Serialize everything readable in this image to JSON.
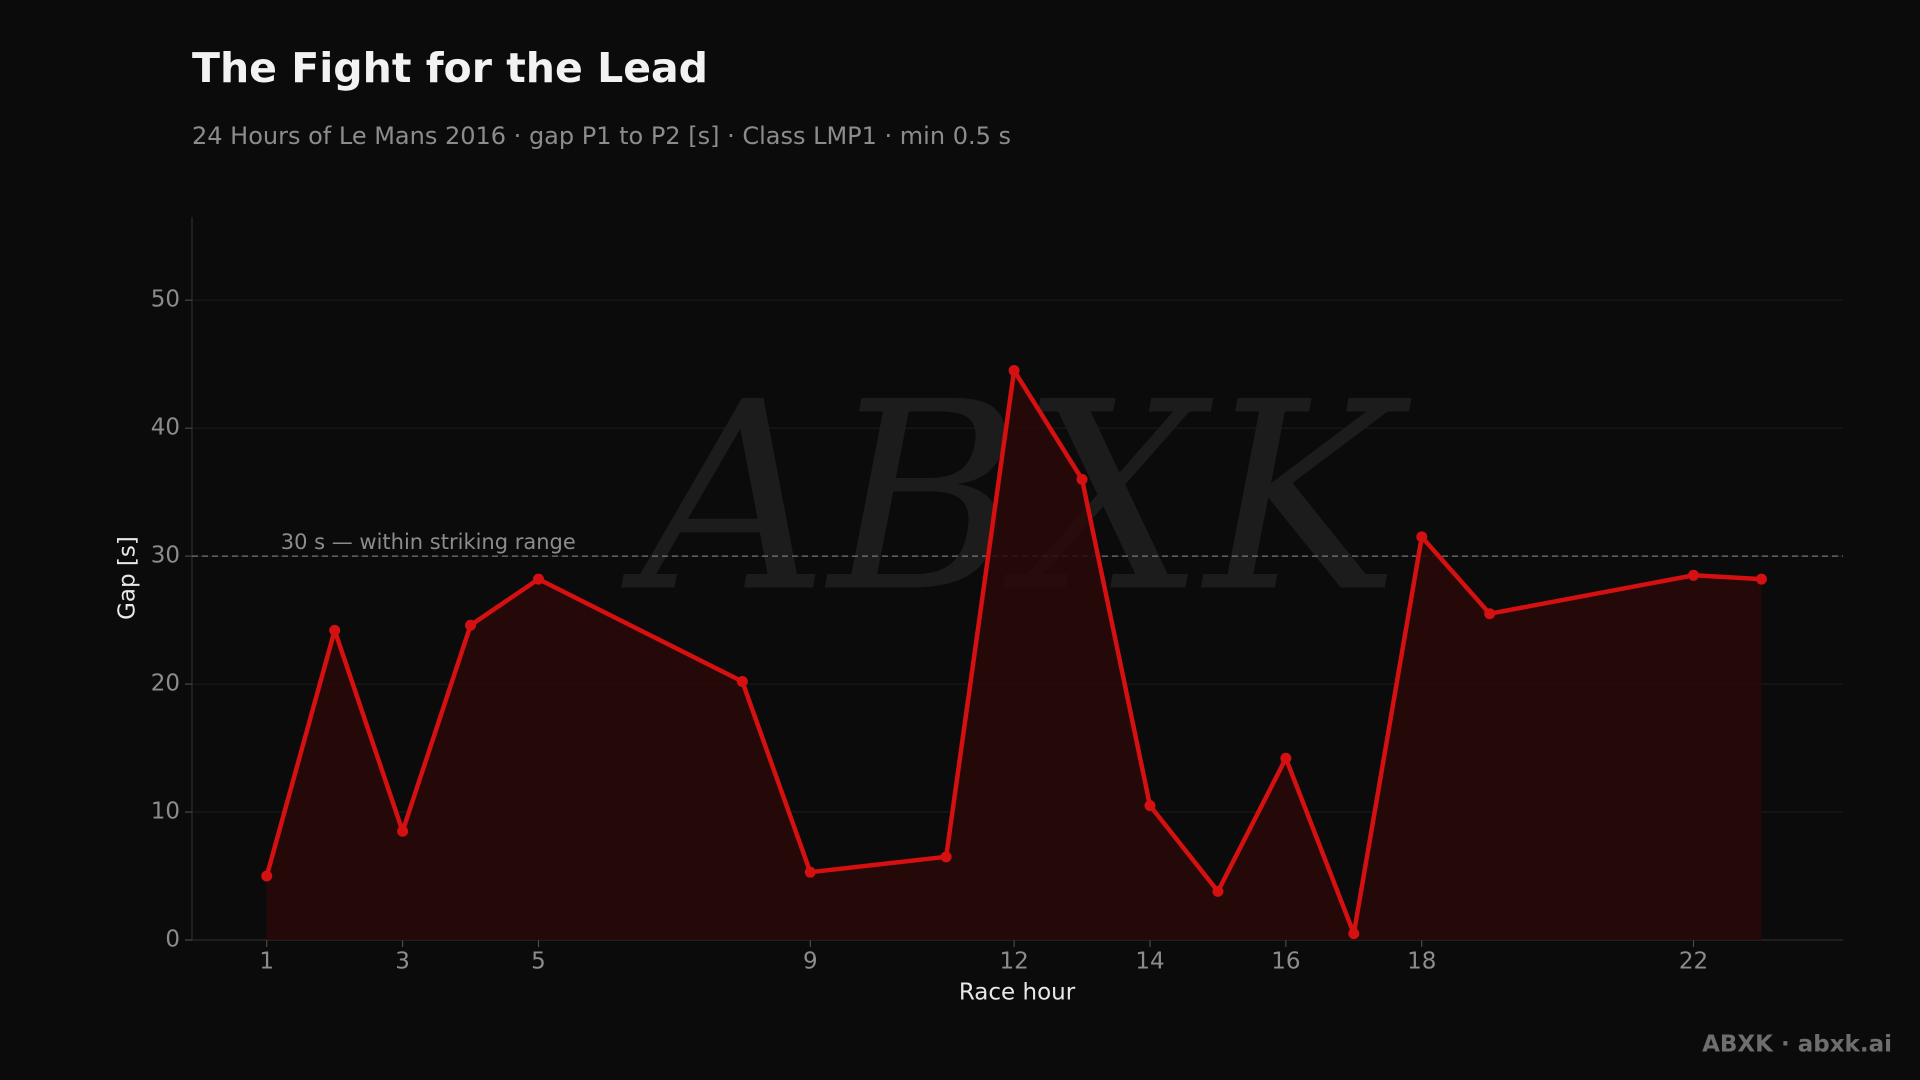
{
  "chart_data": {
    "type": "line",
    "title": "The Fight for the Lead",
    "subtitle": "24 Hours of Le Mans 2016 · gap P1 to P2 [s] · Class LMP1 · min 0.5 s",
    "x_label": "Race hour",
    "y_label": "Gap [s]",
    "x": [
      1,
      2,
      3,
      4,
      5,
      8,
      9,
      11,
      12,
      13,
      14,
      15,
      16,
      17,
      18,
      19,
      22,
      23
    ],
    "series": [
      {
        "name": "Gap P1 to P2",
        "color": "#d41010",
        "values": [
          5.0,
          24.2,
          8.5,
          24.6,
          28.2,
          20.2,
          5.3,
          6.5,
          44.5,
          36.0,
          10.5,
          3.8,
          14.2,
          0.5,
          31.5,
          25.5,
          28.5,
          28.2
        ]
      }
    ],
    "area_fill": "#2a0808",
    "xlim": [
      -0.1,
      24.2
    ],
    "ylim": [
      0,
      56.5
    ],
    "xticks": [
      1,
      3,
      5,
      9,
      12,
      14,
      16,
      18,
      22
    ],
    "yticks": [
      0,
      10,
      20,
      30,
      40,
      50
    ],
    "grid": true,
    "reference_line": {
      "value": 30,
      "label": "30 s — within striking range"
    },
    "watermark": "ABXK",
    "footer": "ABXK · abxk.ai"
  }
}
